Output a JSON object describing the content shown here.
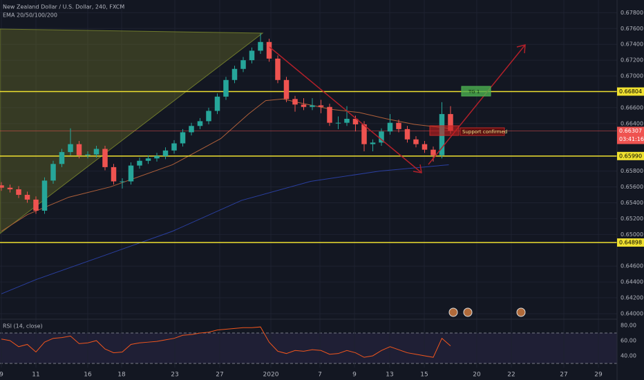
{
  "chart_data": {
    "type": "candlestick",
    "title": "New Zealand Dollar / U.S. Dollar, 240, FXCM",
    "subtitle": "EMA 20/50/100/200",
    "x": [
      0,
      0.5,
      1,
      1.5,
      2,
      2.5,
      3,
      3.5,
      4,
      4.5,
      5,
      5.5,
      6,
      6.5,
      7,
      7.5,
      8,
      8.5,
      9,
      9.5,
      10,
      10.5,
      11,
      11.5,
      12,
      12.5,
      13,
      13.5,
      14,
      14.5,
      15,
      15.5,
      16,
      16.5,
      17,
      17.5,
      18,
      18.5,
      19,
      19.5,
      20,
      20.5,
      21,
      21.5,
      22,
      22.5,
      23,
      23.5,
      24,
      24.5,
      25,
      25.5,
      26
    ],
    "open": [
      0.6562,
      0.6559,
      0.6557,
      0.655,
      0.6544,
      0.653,
      0.6568,
      0.6589,
      0.6604,
      0.6614,
      0.66,
      0.6601,
      0.6608,
      0.6585,
      0.6567,
      0.6567,
      0.6587,
      0.6593,
      0.6596,
      0.6599,
      0.6606,
      0.6615,
      0.6629,
      0.6637,
      0.6643,
      0.6656,
      0.6674,
      0.6695,
      0.6709,
      0.672,
      0.6732,
      0.6743,
      0.6722,
      0.6695,
      0.6671,
      0.6664,
      0.6661,
      0.6663,
      0.6661,
      0.6641,
      0.6641,
      0.6646,
      0.6639,
      0.6614,
      0.6616,
      0.663,
      0.6641,
      0.6633,
      0.662,
      0.6614,
      0.6607,
      0.66,
      0.6652
    ],
    "high": [
      0.6566,
      0.6563,
      0.6561,
      0.6554,
      0.6548,
      0.6572,
      0.6593,
      0.6608,
      0.6634,
      0.6618,
      0.6605,
      0.6612,
      0.6612,
      0.6589,
      0.6571,
      0.6591,
      0.6597,
      0.66,
      0.6603,
      0.661,
      0.6619,
      0.6633,
      0.6641,
      0.6647,
      0.666,
      0.6678,
      0.6699,
      0.6713,
      0.6724,
      0.6736,
      0.6754,
      0.6747,
      0.6726,
      0.6699,
      0.6675,
      0.6672,
      0.6672,
      0.667,
      0.6665,
      0.6649,
      0.6662,
      0.665,
      0.6643,
      0.662,
      0.6634,
      0.6652,
      0.6645,
      0.6637,
      0.6624,
      0.6618,
      0.6611,
      0.6667,
      0.6662
    ],
    "low": [
      0.6555,
      0.6553,
      0.6546,
      0.654,
      0.6526,
      0.6526,
      0.6564,
      0.6585,
      0.66,
      0.6596,
      0.6596,
      0.6597,
      0.6581,
      0.6563,
      0.6558,
      0.6563,
      0.6583,
      0.6589,
      0.6592,
      0.6595,
      0.6602,
      0.6611,
      0.6625,
      0.6633,
      0.6639,
      0.6652,
      0.667,
      0.6691,
      0.6705,
      0.6716,
      0.6728,
      0.6718,
      0.6691,
      0.6667,
      0.6655,
      0.6657,
      0.6657,
      0.6653,
      0.6637,
      0.6633,
      0.6637,
      0.663,
      0.6605,
      0.6605,
      0.6612,
      0.6626,
      0.6629,
      0.6616,
      0.661,
      0.6603,
      0.6592,
      0.6596,
      0.6627
    ],
    "close": [
      0.6559,
      0.6557,
      0.655,
      0.6544,
      0.653,
      0.6568,
      0.6589,
      0.6604,
      0.6614,
      0.66,
      0.6601,
      0.6608,
      0.6585,
      0.6567,
      0.6567,
      0.6587,
      0.6593,
      0.6596,
      0.6599,
      0.6606,
      0.6615,
      0.6629,
      0.6637,
      0.6643,
      0.6656,
      0.6674,
      0.6695,
      0.6709,
      0.672,
      0.6732,
      0.6743,
      0.6722,
      0.6695,
      0.6671,
      0.6664,
      0.6661,
      0.6663,
      0.6661,
      0.6641,
      0.6641,
      0.6646,
      0.6639,
      0.6614,
      0.6616,
      0.663,
      0.6641,
      0.6633,
      0.662,
      0.6614,
      0.6607,
      0.66,
      0.6652,
      0.6631
    ],
    "up_color": "#26a69a",
    "down_color": "#ef5350",
    "lines": [
      {
        "color": "#b0603a",
        "x": [
          0,
          1.5,
          3.9,
          6.3,
          9.9,
          12.7,
          14.3,
          15.3,
          16.3,
          17.1,
          19.1,
          20.7,
          22.3,
          23.9,
          25.9
        ],
        "values": [
          0.6504,
          0.6525,
          0.6547,
          0.656,
          0.6588,
          0.6621,
          0.6652,
          0.6669,
          0.6671,
          0.6667,
          0.6658,
          0.6654,
          0.6646,
          0.6639,
          0.6634
        ]
      },
      {
        "color": "#2a3fa0",
        "x": [
          0,
          2,
          5.9,
          9.9,
          13.9,
          17.9,
          21.9,
          25.9
        ],
        "values": [
          0.6425,
          0.6443,
          0.6473,
          0.6504,
          0.6543,
          0.6567,
          0.658,
          0.6588
        ]
      }
    ],
    "xlim": [
      -0.08,
      35.64
    ],
    "xticks": [
      {
        "value": 0,
        "label": "9"
      },
      {
        "value": 2,
        "label": "11"
      },
      {
        "value": 5,
        "label": "16"
      },
      {
        "value": 6.96,
        "label": "18"
      },
      {
        "value": 10.04,
        "label": "23"
      },
      {
        "value": 12.64,
        "label": "27"
      },
      {
        "value": 15.6,
        "label": "2020"
      },
      {
        "value": 18.44,
        "label": "7"
      },
      {
        "value": 20.44,
        "label": "9"
      },
      {
        "value": 22.48,
        "label": "13"
      },
      {
        "value": 24.48,
        "label": "15"
      },
      {
        "value": 27.52,
        "label": "20"
      },
      {
        "value": 29.52,
        "label": "22"
      },
      {
        "value": 32.56,
        "label": "27"
      },
      {
        "value": 34.56,
        "label": "29"
      }
    ],
    "ylim": [
      0.6393,
      0.6796
    ],
    "yticks": [
      {
        "value": 0.678,
        "label": "0.67800"
      },
      {
        "value": 0.676,
        "label": "0.67600"
      },
      {
        "value": 0.674,
        "label": "0.67400"
      },
      {
        "value": 0.672,
        "label": "0.67200"
      },
      {
        "value": 0.67,
        "label": "0.67000"
      },
      {
        "value": 0.666,
        "label": "0.66600"
      },
      {
        "value": 0.664,
        "label": "0.66400"
      },
      {
        "value": 0.658,
        "label": "0.65800"
      },
      {
        "value": 0.656,
        "label": "0.65600"
      },
      {
        "value": 0.654,
        "label": "0.65400"
      },
      {
        "value": 0.652,
        "label": "0.65200"
      },
      {
        "value": 0.65,
        "label": "0.65000"
      },
      {
        "value": 0.646,
        "label": "0.64600"
      },
      {
        "value": 0.644,
        "label": "0.64400"
      },
      {
        "value": 0.642,
        "label": "0.64200"
      },
      {
        "value": 0.64,
        "label": "0.64000"
      }
    ],
    "grid": true,
    "levels": [
      {
        "value": 0.66804,
        "label": "0.66804",
        "color": "#f0e130"
      },
      {
        "value": 0.6599,
        "label": "0.65990",
        "color": "#f0e130"
      },
      {
        "value": 0.64898,
        "label": "0.64898",
        "color": "#f0e130"
      }
    ],
    "last_price": {
      "value": 0.66307,
      "label": "0.66307",
      "countdown": "03:41:16",
      "color": "#ef5350"
    },
    "annotations": {
      "target": "TG 1",
      "support": "Support confirmed"
    },
    "rsi": {
      "label": "RSI (14, close)",
      "color": "#f2561d",
      "values": [
        62,
        60,
        52,
        55,
        45,
        58,
        63,
        64,
        66,
        56,
        57,
        60,
        49,
        44,
        45,
        55,
        57,
        58,
        59,
        61,
        63,
        67,
        68,
        70,
        71,
        74,
        75,
        76,
        77,
        77,
        78,
        58,
        46,
        43,
        47,
        46,
        48,
        47,
        42,
        43,
        47,
        44,
        38,
        40,
        47,
        52,
        48,
        44,
        42,
        40,
        38,
        63,
        53
      ],
      "ylim": [
        24.5,
        88.2
      ],
      "yticks": [
        {
          "value": 80,
          "label": "80.00"
        },
        {
          "value": 60,
          "label": "60.00"
        },
        {
          "value": 40,
          "label": "40.00"
        }
      ],
      "bands": [
        70,
        30
      ]
    }
  }
}
